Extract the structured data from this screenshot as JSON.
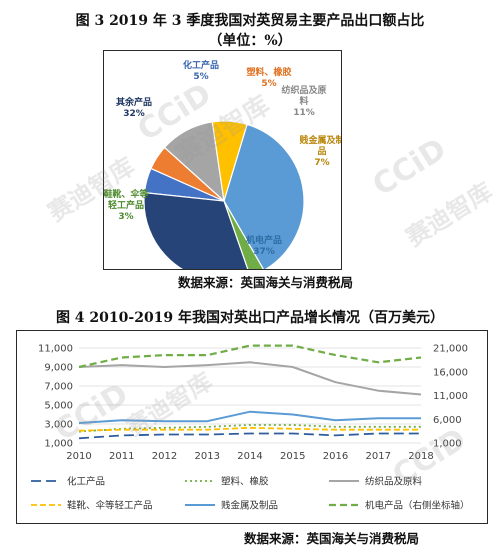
{
  "figure3": {
    "title": "图 3   2019 年 3 季度我国对英贸易主要产品出口额占比",
    "subtitle": "（单位：%）",
    "source": "数据来源：英国海关与消费税局"
  },
  "figure4": {
    "title": "图 4   2010-2019 年我国对英出口产品增长情况（百万美元）",
    "source": "数据来源：英国海关与消费税局"
  },
  "watermark": {
    "logo": "CCiD",
    "text": "赛迪智库"
  },
  "chart_data": [
    {
      "type": "pie",
      "title": "2019 年 3 季度我国对英贸易主要产品出口额占比",
      "unit": "%",
      "slices": [
        {
          "label": "化工产品",
          "value": 5,
          "color": "#4472c4"
        },
        {
          "label": "塑料、橡胶",
          "value": 5,
          "color": "#ed7d31"
        },
        {
          "label": "纺织品及原料",
          "value": 11,
          "color": "#a5a5a5"
        },
        {
          "label": "贱金属及制品",
          "value": 7,
          "color": "#ffc000"
        },
        {
          "label": "机电产品",
          "value": 37,
          "color": "#5b9bd5"
        },
        {
          "label": "鞋靴、伞等轻工产品",
          "value": 3,
          "color": "#70ad47"
        },
        {
          "label": "其余产品",
          "value": 32,
          "color": "#264478"
        }
      ],
      "slice_labels": [
        {
          "lines": [
            "化工产品",
            "5%"
          ],
          "color": "#3a66b0"
        },
        {
          "lines": [
            "塑料、橡胶",
            "5%"
          ],
          "color": "#e07020"
        },
        {
          "lines": [
            "纺织品及原",
            "料",
            "11%"
          ],
          "color": "#888888"
        },
        {
          "lines": [
            "贱金属及制",
            "品",
            "7%"
          ],
          "color": "#b8860b"
        },
        {
          "lines": [
            "机电产品",
            "37%"
          ],
          "color": "#2e6da4"
        },
        {
          "lines": [
            "鞋靴、伞等",
            "轻工产品",
            "3%"
          ],
          "color": "#4e8a2e"
        },
        {
          "lines": [
            "其余产品",
            "32%"
          ],
          "color": "#1f3864"
        }
      ]
    },
    {
      "type": "line",
      "title": "2010-2019 年我国对英出口产品增长情况（百万美元）",
      "x": [
        "2010",
        "2011",
        "2012",
        "2013",
        "2014",
        "2015",
        "2016",
        "2017",
        "2018"
      ],
      "y_left": {
        "min": 1000,
        "max": 11000,
        "ticks": [
          "1,000",
          "3,000",
          "5,000",
          "7,000",
          "9,000",
          "11,000"
        ]
      },
      "y_right": {
        "min": 1000,
        "max": 21000,
        "ticks": [
          "1,000",
          "6,000",
          "11,000",
          "16,000",
          "21,000"
        ]
      },
      "grid": true,
      "legend_position": "bottom",
      "series": [
        {
          "name": "化工产品",
          "color": "#2e5d9f",
          "dash": "10,5",
          "width": 1.8,
          "axis": "left",
          "values": [
            1500,
            1800,
            1900,
            1900,
            2000,
            2000,
            1800,
            2000,
            2000
          ]
        },
        {
          "name": "塑料、橡胶",
          "color": "#70ad47",
          "dash": "2,3",
          "width": 1.8,
          "axis": "left",
          "values": [
            2200,
            2500,
            2600,
            2700,
            2900,
            2900,
            2700,
            2700,
            2700
          ]
        },
        {
          "name": "纺织品及原料",
          "color": "#a5a5a5",
          "dash": "",
          "width": 2,
          "axis": "left",
          "values": [
            9000,
            9200,
            9000,
            9200,
            9500,
            9000,
            7400,
            6500,
            6100
          ]
        },
        {
          "name": "鞋靴、伞等轻工产品",
          "color": "#ffc000",
          "dash": "6,3",
          "width": 1.8,
          "axis": "left",
          "values": [
            2300,
            2400,
            2400,
            2400,
            2600,
            2500,
            2400,
            2400,
            2400
          ]
        },
        {
          "name": "贱金属及制品",
          "color": "#5b9bd5",
          "dash": "",
          "width": 2,
          "axis": "left",
          "values": [
            3100,
            3400,
            3300,
            3300,
            4300,
            4000,
            3400,
            3600,
            3600
          ]
        },
        {
          "name": "机电产品（右侧坐标轴）",
          "color": "#70ad47",
          "dash": "7,4",
          "width": 2.2,
          "axis": "right",
          "values": [
            17000,
            19000,
            19500,
            19500,
            21500,
            21500,
            19500,
            18000,
            19000
          ]
        }
      ]
    }
  ]
}
